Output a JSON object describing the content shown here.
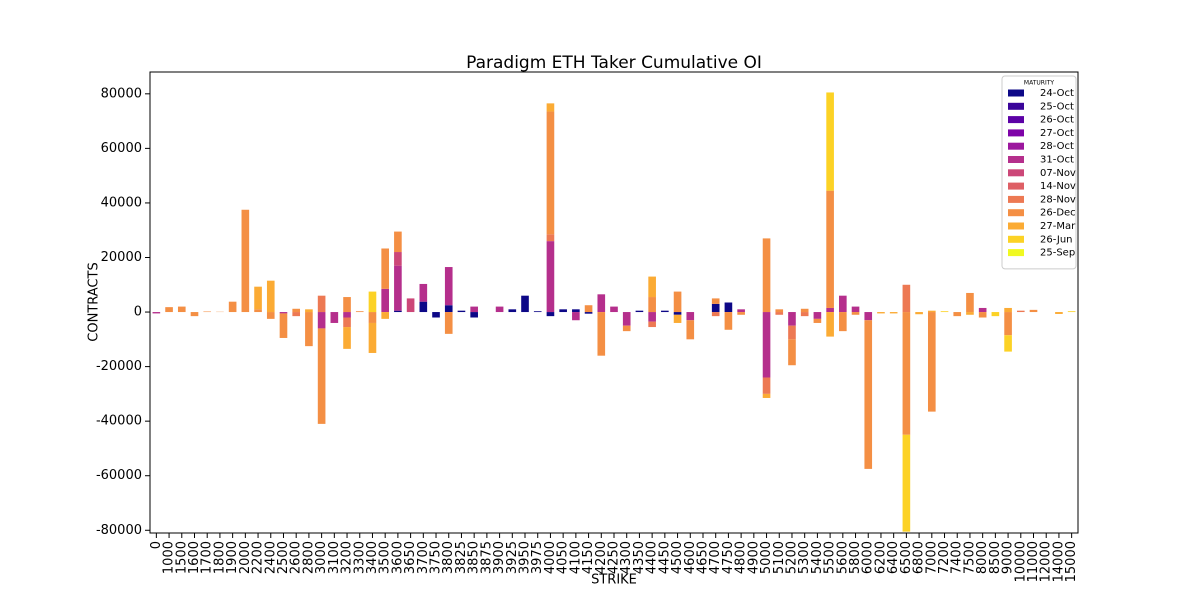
{
  "chart_data": {
    "type": "stacked_bar",
    "title": "Paradigm ETH Taker Cumulative OI",
    "x_label": "STRIKE",
    "y_label": "CONTRACTS",
    "legend_title": "MATURITY",
    "legend": "upper right",
    "categories": [
      "0",
      "1000",
      "1500",
      "1600",
      "1700",
      "1800",
      "1900",
      "2000",
      "2200",
      "2400",
      "2500",
      "2600",
      "2800",
      "3000",
      "3100",
      "3200",
      "3300",
      "3400",
      "3500",
      "3600",
      "3650",
      "3700",
      "3750",
      "3800",
      "3825",
      "3850",
      "3875",
      "3900",
      "3925",
      "3950",
      "3975",
      "4000",
      "4050",
      "4100",
      "4150",
      "4200",
      "4250",
      "4300",
      "4350",
      "4400",
      "4450",
      "4500",
      "4600",
      "4650",
      "4700",
      "4750",
      "4800",
      "4900",
      "5000",
      "5100",
      "5200",
      "5300",
      "5400",
      "5500",
      "5600",
      "5800",
      "6000",
      "6200",
      "6400",
      "6500",
      "6800",
      "7000",
      "7200",
      "7400",
      "7500",
      "8000",
      "8500",
      "9000",
      "10000",
      "11000",
      "12000",
      "14000",
      "15000"
    ],
    "ylim": [
      -81000,
      88000
    ],
    "yticks": [
      -80000,
      -60000,
      -40000,
      -20000,
      0,
      20000,
      40000,
      60000,
      80000
    ],
    "series": [
      {
        "name": "24-Oct",
        "color": "#0d0887",
        "values": [
          0,
          0,
          0,
          0,
          0,
          0,
          0,
          0,
          0,
          0,
          0,
          0,
          0,
          0,
          0,
          0,
          0,
          0,
          0,
          500,
          0,
          3800,
          -2000,
          2500,
          500,
          -2000,
          0,
          0,
          1000,
          6000,
          300,
          -1500,
          1000,
          1000,
          -600,
          0,
          0,
          0,
          500,
          0,
          500,
          -1000,
          0,
          0,
          3000,
          3500,
          0,
          0,
          0,
          0,
          0,
          0,
          0,
          0,
          0,
          0,
          0,
          0,
          0,
          0,
          0,
          0,
          0,
          0,
          0,
          0,
          0,
          0,
          0,
          0,
          0,
          0,
          0
        ]
      },
      {
        "name": "25-Oct",
        "color": "#3a049a",
        "values": [
          0,
          0,
          0,
          0,
          0,
          0,
          0,
          0,
          0,
          0,
          0,
          0,
          0,
          0,
          0,
          0,
          0,
          0,
          0,
          0,
          0,
          0,
          0,
          0,
          0,
          0,
          0,
          0,
          0,
          0,
          0,
          0,
          0,
          0,
          0,
          0,
          0,
          0,
          0,
          0,
          0,
          0,
          0,
          0,
          0,
          0,
          0,
          0,
          0,
          0,
          0,
          0,
          0,
          0,
          0,
          0,
          0,
          0,
          0,
          0,
          0,
          0,
          0,
          0,
          0,
          0,
          0,
          0,
          0,
          0,
          0,
          0,
          0
        ]
      },
      {
        "name": "26-Oct",
        "color": "#5c01a6",
        "values": [
          0,
          0,
          0,
          0,
          0,
          0,
          0,
          0,
          0,
          0,
          0,
          0,
          0,
          0,
          0,
          0,
          0,
          0,
          0,
          0,
          0,
          0,
          0,
          0,
          0,
          0,
          0,
          0,
          0,
          0,
          0,
          0,
          0,
          0,
          0,
          0,
          0,
          0,
          0,
          0,
          0,
          0,
          0,
          0,
          0,
          0,
          0,
          0,
          0,
          0,
          0,
          0,
          0,
          0,
          0,
          0,
          0,
          0,
          0,
          0,
          0,
          0,
          0,
          0,
          0,
          0,
          0,
          0,
          0,
          0,
          0,
          0,
          0
        ]
      },
      {
        "name": "27-Oct",
        "color": "#7e03a8",
        "values": [
          0,
          0,
          0,
          0,
          0,
          0,
          0,
          0,
          0,
          0,
          0,
          0,
          0,
          0,
          0,
          0,
          0,
          0,
          0,
          0,
          0,
          0,
          0,
          0,
          0,
          0,
          0,
          0,
          0,
          0,
          0,
          0,
          0,
          0,
          0,
          0,
          0,
          0,
          0,
          0,
          0,
          0,
          0,
          0,
          0,
          0,
          0,
          0,
          0,
          0,
          0,
          0,
          0,
          0,
          0,
          0,
          0,
          0,
          0,
          0,
          0,
          0,
          0,
          0,
          0,
          0,
          0,
          0,
          0,
          0,
          0,
          0,
          0
        ]
      },
      {
        "name": "28-Oct",
        "color": "#9c179e",
        "values": [
          0,
          0,
          0,
          0,
          0,
          0,
          0,
          0,
          0,
          0,
          0,
          0,
          0,
          0,
          0,
          0,
          0,
          0,
          0,
          0,
          0,
          0,
          0,
          0,
          0,
          0,
          0,
          0,
          0,
          0,
          0,
          0,
          0,
          0,
          0,
          0,
          0,
          0,
          0,
          0,
          0,
          0,
          0,
          0,
          0,
          0,
          0,
          0,
          0,
          0,
          0,
          0,
          0,
          0,
          0,
          0,
          0,
          0,
          0,
          0,
          0,
          0,
          0,
          0,
          0,
          0,
          0,
          0,
          0,
          0,
          0,
          0,
          0
        ]
      },
      {
        "name": "31-Oct",
        "color": "#b52f8c",
        "values": [
          -500,
          0,
          0,
          0,
          0,
          0,
          0,
          0,
          0,
          0,
          -500,
          0,
          0,
          -6000,
          -4000,
          -2000,
          0,
          0,
          8500,
          16500,
          0,
          6500,
          0,
          14000,
          0,
          2000,
          0,
          2000,
          0,
          0,
          0,
          26000,
          0,
          -3000,
          0,
          6500,
          2000,
          -5000,
          0,
          -3500,
          0,
          0,
          -3000,
          0,
          0,
          0,
          1000,
          0,
          -24000,
          0,
          -5000,
          0,
          -2500,
          1500,
          6000,
          2000,
          -3000,
          0,
          0,
          0,
          0,
          0,
          0,
          0,
          0,
          1500,
          0,
          0,
          0,
          0,
          0,
          0,
          0
        ]
      },
      {
        "name": "07-Nov",
        "color": "#cc4778",
        "values": [
          0,
          0,
          0,
          0,
          0,
          0,
          0,
          0,
          0,
          0,
          0,
          0,
          0,
          0,
          0,
          0,
          0,
          0,
          0,
          5000,
          5000,
          0,
          0,
          0,
          0,
          0,
          0,
          0,
          0,
          0,
          0,
          0,
          0,
          0,
          0,
          0,
          0,
          0,
          0,
          0,
          0,
          0,
          0,
          0,
          0,
          0,
          0,
          0,
          0,
          0,
          0,
          0,
          0,
          0,
          0,
          0,
          0,
          0,
          0,
          0,
          0,
          0,
          0,
          0,
          0,
          0,
          0,
          0,
          0,
          0,
          0,
          0,
          0
        ]
      },
      {
        "name": "14-Nov",
        "color": "#de5f65",
        "values": [
          0,
          0,
          0,
          0,
          0,
          0,
          0,
          0,
          0,
          0,
          0,
          0,
          0,
          0,
          0,
          0,
          0,
          0,
          0,
          0,
          0,
          0,
          0,
          0,
          0,
          0,
          0,
          0,
          0,
          0,
          0,
          0,
          0,
          0,
          0,
          0,
          0,
          0,
          0,
          0,
          0,
          0,
          0,
          0,
          0,
          0,
          0,
          0,
          0,
          0,
          0,
          0,
          0,
          0,
          0,
          0,
          0,
          0,
          0,
          0,
          0,
          0,
          0,
          0,
          0,
          0,
          0,
          0,
          0,
          0,
          0,
          0,
          0
        ]
      },
      {
        "name": "28-Nov",
        "color": "#ed7953",
        "values": [
          0,
          0,
          0,
          0,
          0,
          0,
          0,
          0,
          0,
          0,
          0,
          -1500,
          0,
          6000,
          0,
          -3500,
          0,
          0,
          0,
          0,
          0,
          0,
          0,
          0,
          0,
          0,
          0,
          0,
          0,
          0,
          0,
          2500,
          0,
          0,
          0,
          0,
          0,
          0,
          0,
          -2000,
          0,
          0,
          0,
          0,
          -1500,
          0,
          0,
          0,
          -6000,
          -1000,
          -5000,
          -1500,
          0,
          0,
          0,
          0,
          0,
          0,
          0,
          10000,
          0,
          0,
          0,
          0,
          0,
          0,
          0,
          0,
          500,
          0,
          0,
          0,
          0
        ]
      },
      {
        "name": "26-Dec",
        "color": "#f48f44",
        "values": [
          0,
          1800,
          2000,
          -1500,
          200,
          100,
          3800,
          37500,
          1000,
          -2500,
          -9000,
          1200,
          -12500,
          -35000,
          0,
          5500,
          300,
          -4000,
          14800,
          7500,
          0,
          0,
          0,
          -8000,
          0,
          0,
          0,
          0,
          0,
          0,
          0,
          45000,
          0,
          0,
          2500,
          -16000,
          0,
          -2000,
          0,
          5500,
          0,
          7500,
          -7000,
          0,
          2000,
          -6500,
          -1000,
          0,
          27000,
          1000,
          -9500,
          1200,
          -1500,
          43000,
          -7000,
          -1000,
          -54500,
          0,
          0,
          -45000,
          0,
          -36500,
          0,
          -1500,
          7000,
          -2000,
          0,
          -8500,
          0,
          800,
          0,
          0,
          0
        ]
      },
      {
        "name": "27-Mar",
        "color": "#fbab34",
        "values": [
          0,
          0,
          0,
          0,
          0,
          0,
          0,
          0,
          8300,
          11500,
          0,
          0,
          1000,
          0,
          0,
          -8000,
          0,
          -11000,
          -2500,
          0,
          0,
          0,
          0,
          0,
          0,
          0,
          0,
          0,
          0,
          0,
          0,
          3000,
          0,
          0,
          0,
          0,
          0,
          0,
          0,
          7500,
          0,
          -3000,
          0,
          0,
          0,
          0,
          0,
          0,
          -1500,
          0,
          0,
          0,
          0,
          -9000,
          0,
          0,
          0,
          -500,
          -500,
          0,
          -800,
          500,
          0,
          0,
          -1000,
          0,
          0,
          1500,
          0,
          0,
          0,
          -700,
          0
        ]
      },
      {
        "name": "26-Jun",
        "color": "#fcd225",
        "values": [
          0,
          0,
          0,
          0,
          0,
          0,
          0,
          0,
          0,
          0,
          0,
          0,
          0,
          0,
          0,
          0,
          0,
          7500,
          0,
          0,
          0,
          0,
          0,
          0,
          0,
          0,
          0,
          0,
          0,
          0,
          0,
          0,
          0,
          0,
          0,
          0,
          0,
          0,
          0,
          0,
          0,
          0,
          0,
          0,
          0,
          0,
          0,
          0,
          0,
          0,
          0,
          0,
          0,
          36000,
          0,
          0,
          0,
          0,
          0,
          -35500,
          0,
          0,
          300,
          0,
          0,
          0,
          -1500,
          -6000,
          0,
          0,
          0,
          0,
          300
        ]
      },
      {
        "name": "25-Sep",
        "color": "#f0f921",
        "values": [
          0,
          0,
          0,
          0,
          0,
          0,
          0,
          0,
          0,
          0,
          0,
          0,
          0,
          0,
          0,
          0,
          0,
          0,
          0,
          0,
          0,
          0,
          0,
          0,
          0,
          0,
          0,
          0,
          0,
          0,
          0,
          0,
          0,
          0,
          0,
          0,
          0,
          0,
          0,
          0,
          0,
          0,
          0,
          0,
          0,
          0,
          0,
          0,
          0,
          0,
          0,
          0,
          0,
          0,
          0,
          0,
          0,
          0,
          0,
          0,
          0,
          0,
          0,
          0,
          0,
          0,
          0,
          0,
          0,
          0,
          0,
          0,
          0
        ]
      }
    ]
  }
}
